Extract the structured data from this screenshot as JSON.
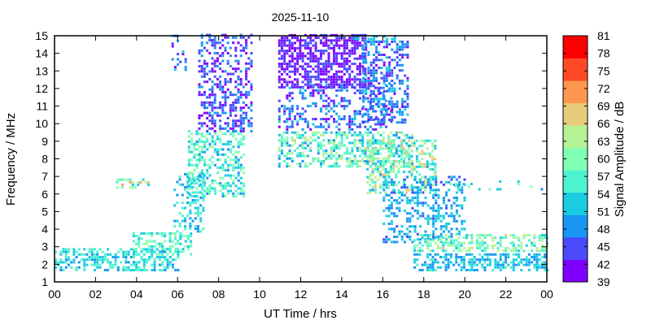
{
  "chart_data": {
    "type": "heatmap",
    "title": "2025-11-10",
    "xlabel": "UT Time / hrs",
    "ylabel": "Frequency / MHz",
    "xlim": [
      0,
      24
    ],
    "ylim": [
      1,
      15
    ],
    "x_ticks": [
      "00",
      "02",
      "04",
      "06",
      "08",
      "10",
      "12",
      "14",
      "16",
      "18",
      "20",
      "22",
      "00"
    ],
    "y_ticks": [
      "1",
      "2",
      "3",
      "4",
      "5",
      "6",
      "7",
      "8",
      "9",
      "10",
      "11",
      "12",
      "13",
      "14",
      "15"
    ],
    "colorbar": {
      "label": "Signal Amplitude / dB",
      "range": [
        39,
        81
      ],
      "ticks": [
        "39",
        "42",
        "45",
        "48",
        "51",
        "54",
        "57",
        "60",
        "63",
        "66",
        "69",
        "72",
        "75",
        "78",
        "81"
      ],
      "colors": [
        "#7f00ff",
        "#4a4afb",
        "#1996f3",
        "#1acce2",
        "#4df3ce",
        "#80feb3",
        "#b3f396",
        "#e6cc7a",
        "#ff964f",
        "#ff4a28",
        "#ff0000"
      ]
    },
    "grid": false,
    "regions": [
      {
        "t": [
          0,
          6
        ],
        "f": [
          1.6,
          2.8
        ],
        "db": [
          49,
          58
        ],
        "density": 0.55
      },
      {
        "t": [
          3.8,
          6.6
        ],
        "f": [
          2.5,
          3.8
        ],
        "db": [
          50,
          62
        ],
        "density": 0.45
      },
      {
        "t": [
          3,
          4.6
        ],
        "f": [
          6.3,
          6.75
        ],
        "db": [
          53,
          72
        ],
        "density": 0.4
      },
      {
        "t": [
          5.8,
          7.2
        ],
        "f": [
          3.8,
          7.2
        ],
        "db": [
          48,
          58
        ],
        "density": 0.35
      },
      {
        "t": [
          6.5,
          9.2
        ],
        "f": [
          5.8,
          9.6
        ],
        "db": [
          49,
          62
        ],
        "density": 0.45
      },
      {
        "t": [
          7,
          9.6
        ],
        "f": [
          9.5,
          15
        ],
        "db": [
          39,
          50
        ],
        "density": 0.45
      },
      {
        "t": [
          5.7,
          6.4
        ],
        "f": [
          13,
          15
        ],
        "db": [
          39,
          54
        ],
        "density": 0.2
      },
      {
        "t": [
          10.9,
          15.2
        ],
        "f": [
          12,
          15
        ],
        "db": [
          39,
          46
        ],
        "density": 0.65
      },
      {
        "t": [
          10.9,
          16.4
        ],
        "f": [
          9.6,
          12.2
        ],
        "db": [
          41,
          52
        ],
        "density": 0.35
      },
      {
        "t": [
          10.9,
          17.5
        ],
        "f": [
          7.5,
          9.5
        ],
        "db": [
          48,
          66
        ],
        "density": 0.5
      },
      {
        "t": [
          15,
          17.2
        ],
        "f": [
          10,
          14.6
        ],
        "db": [
          42,
          52
        ],
        "density": 0.45
      },
      {
        "t": [
          15.2,
          18.6
        ],
        "f": [
          6,
          9
        ],
        "db": [
          50,
          69
        ],
        "density": 0.5
      },
      {
        "t": [
          16,
          20
        ],
        "f": [
          3.2,
          7
        ],
        "db": [
          46,
          54
        ],
        "density": 0.35
      },
      {
        "t": [
          17.5,
          24
        ],
        "f": [
          2.7,
          3.6
        ],
        "db": [
          52,
          66
        ],
        "density": 0.5
      },
      {
        "t": [
          17.5,
          24
        ],
        "f": [
          1.6,
          2.6
        ],
        "db": [
          47,
          56
        ],
        "density": 0.5
      },
      {
        "t": [
          19,
          24
        ],
        "f": [
          6.2,
          6.7
        ],
        "db": [
          50,
          62
        ],
        "density": 0.1
      },
      {
        "t": [
          14.5,
          17
        ],
        "f": [
          14.6,
          15
        ],
        "db": [
          48,
          54
        ],
        "density": 0.4
      }
    ]
  }
}
